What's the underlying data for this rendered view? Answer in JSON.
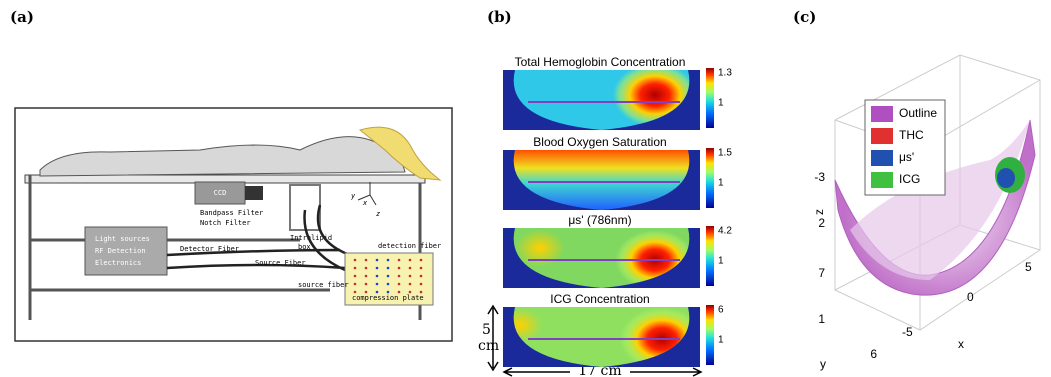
{
  "panel_a": {
    "label": "(a)",
    "ccd": "CCD",
    "bandpass_filter": "Bandpass Filter",
    "notch_filter": "Notch Filter",
    "intralipid_box": [
      "Intralipid",
      "box"
    ],
    "light_sources": [
      "Light sources",
      "RF Detection",
      "Electronics"
    ],
    "detector_fiber": "Detector Fiber",
    "source_fiber": "Source Fiber",
    "detection_fiber": "detection fiber",
    "source_fiber_small": "source fiber",
    "compression_plate": "compression plate",
    "axes": [
      "y",
      "x",
      "z"
    ]
  },
  "panel_b": {
    "label": "(b)",
    "maps": [
      {
        "title": "Total Hemoglobin Concentration",
        "ticks": [
          "1.3",
          "1"
        ]
      },
      {
        "title": "Blood Oxygen Saturation",
        "ticks": [
          "1.5",
          "1"
        ]
      },
      {
        "title": "μs' (786nm)",
        "ticks": [
          "4.2",
          "1"
        ]
      },
      {
        "title": "ICG Concentration",
        "ticks": [
          "6",
          "1"
        ]
      }
    ],
    "height_label": [
      "5",
      "cm"
    ],
    "width_label": "17 cm"
  },
  "panel_c": {
    "label": "(c)",
    "legend": [
      "Outline",
      "THC",
      "μs'",
      "ICG"
    ],
    "z_label": "z",
    "z_ticks": [
      "-3",
      "2",
      "7"
    ],
    "y_label": "y",
    "y_ticks": [
      "1",
      "6"
    ],
    "x_label": "x",
    "x_ticks": [
      "5",
      "0",
      "-5"
    ]
  }
}
